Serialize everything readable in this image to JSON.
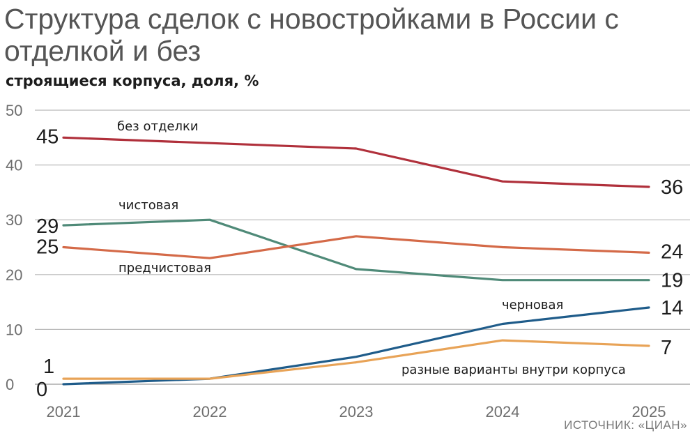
{
  "title": "Структура сделок с новостройками в России с отделкой и без",
  "subtitle": "строящиеся корпуса, доля, %",
  "source": "ИСТОЧНИК: «ЦИАН»",
  "chart_data": {
    "type": "line",
    "x": [
      "2021",
      "2022",
      "2023",
      "2024",
      "2025"
    ],
    "ylim": [
      0,
      50
    ],
    "yticks": [
      0,
      10,
      20,
      30,
      40,
      50
    ],
    "grid": true,
    "series": [
      {
        "name": "без отделки",
        "color": "#b0303b",
        "values": [
          45,
          44,
          43,
          37,
          36
        ]
      },
      {
        "name": "чистовая",
        "color": "#4f8a78",
        "values": [
          29,
          30,
          21,
          19,
          19
        ]
      },
      {
        "name": "предчистовая",
        "color": "#d46a48",
        "values": [
          25,
          23,
          27,
          25,
          24
        ]
      },
      {
        "name": "черновая",
        "color": "#1f5c8a",
        "values": [
          0,
          1,
          5,
          11,
          14
        ]
      },
      {
        "name": "разные варианты внутри корпуса",
        "color": "#e8a357",
        "values": [
          1,
          1,
          4,
          8,
          7
        ]
      }
    ]
  }
}
